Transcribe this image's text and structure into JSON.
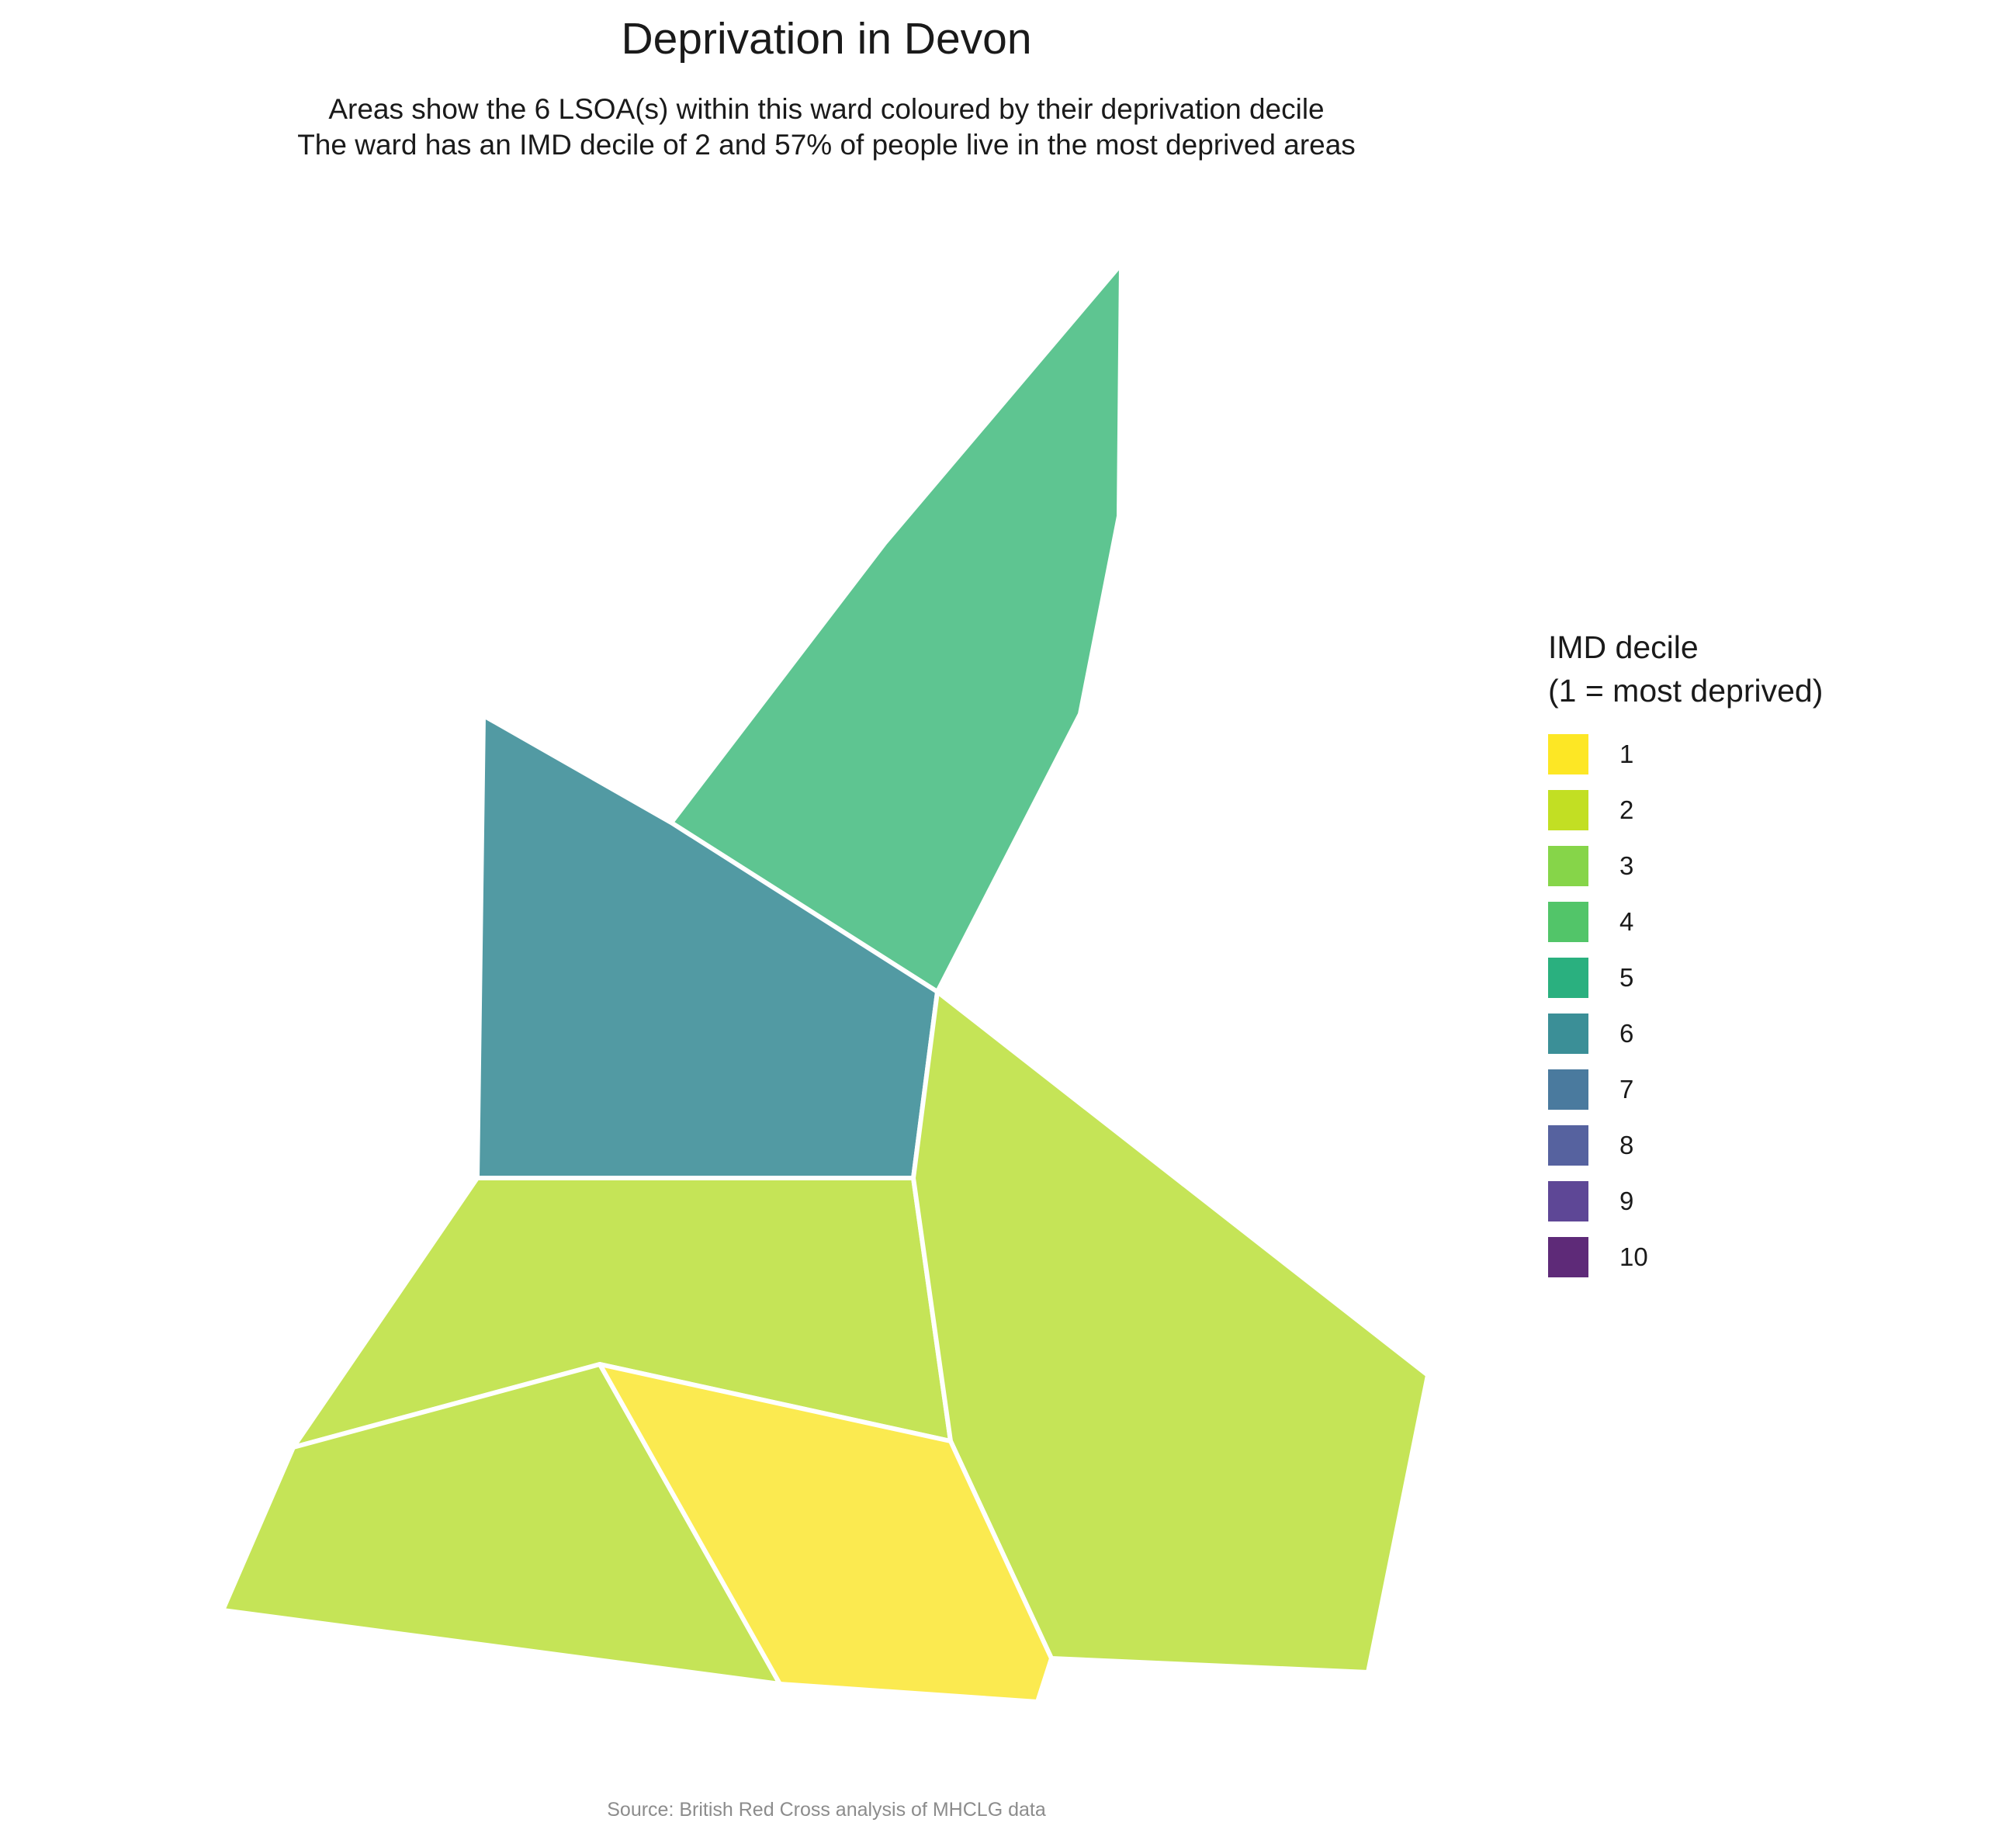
{
  "title": "Deprivation in Devon",
  "subtitle": [
    "Areas show the 6 LSOA(s) within this ward coloured by their deprivation decile",
    "The ward has an IMD decile of 2 and 57% of people live in the most deprived areas"
  ],
  "caption": "Source: British Red Cross analysis of MHCLG data",
  "legend": {
    "title_lines": [
      "IMD decile",
      "(1 = most deprived)"
    ],
    "items": [
      {
        "label": "1",
        "color": "#FDE725"
      },
      {
        "label": "2",
        "color": "#C2DF23"
      },
      {
        "label": "3",
        "color": "#86D549"
      },
      {
        "label": "4",
        "color": "#52C569"
      },
      {
        "label": "5",
        "color": "#2AB07F"
      },
      {
        "label": "6",
        "color": "#3B8F97"
      },
      {
        "label": "7",
        "color": "#4A7A9E"
      },
      {
        "label": "8",
        "color": "#56629F"
      },
      {
        "label": "9",
        "color": "#5E4796"
      },
      {
        "label": "10",
        "color": "#5E2A78"
      }
    ]
  },
  "areas": [
    {
      "decile": 4,
      "fill": "#5EC591"
    },
    {
      "decile": 6,
      "fill": "#529AA3"
    },
    {
      "decile": 2,
      "fill": "#C5E457"
    },
    {
      "decile": 2,
      "fill": "#C5E457"
    },
    {
      "decile": 2,
      "fill": "#C5E457"
    },
    {
      "decile": 1,
      "fill": "#FBEA50"
    }
  ]
}
